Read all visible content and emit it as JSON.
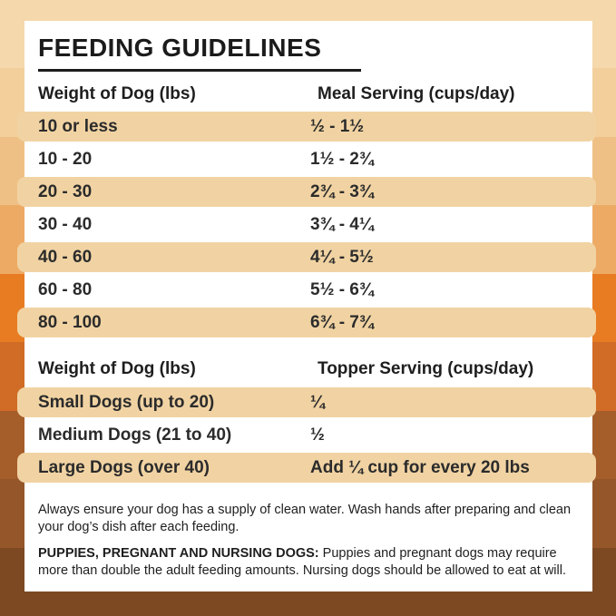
{
  "title": "FEEDING GUIDELINES",
  "meal_table": {
    "col1_header": "Weight of Dog (lbs)",
    "col2_header": "Meal Serving (cups/day)",
    "rows": [
      {
        "weight": "10 or less",
        "serving": "½ - 1½"
      },
      {
        "weight": "10 - 20",
        "serving": "1½ - 2¾"
      },
      {
        "weight": "20 - 30",
        "serving": "2¾ - 3¾"
      },
      {
        "weight": "30 - 40",
        "serving": "3¾ - 4¼"
      },
      {
        "weight": "40 - 60",
        "serving": "4¼ - 5½"
      },
      {
        "weight": "60 - 80",
        "serving": "5½ - 6¾"
      },
      {
        "weight": "80 - 100",
        "serving": "6¾ - 7¾"
      }
    ]
  },
  "topper_table": {
    "col1_header": "Weight of Dog (lbs)",
    "col2_header": "Topper Serving (cups/day)",
    "rows": [
      {
        "weight": "Small Dogs (up to 20)",
        "serving": "¼"
      },
      {
        "weight": "Medium Dogs (21 to 40)",
        "serving": "½"
      },
      {
        "weight": "Large Dogs (over 40)",
        "serving": "Add ¼ cup for every 20 lbs"
      }
    ]
  },
  "notes": {
    "water": "Always ensure your dog has a supply of clean water. Wash hands after preparing and clean your dog’s dish after each feeding.",
    "puppies_label": "PUPPIES, PREGNANT AND NURSING DOGS:",
    "puppies_text": " Puppies and pregnant dogs may require more than double the adult feeding amounts. Nursing dogs should be allowed to eat at will."
  },
  "colors": {
    "card_bg": "#ffffff",
    "row_highlight": "#f1d3a3",
    "text": "#1e1e1e",
    "background_bands": [
      "#f5d8ab",
      "#f2cf9b",
      "#efc085",
      "#edaa65",
      "#e87c22",
      "#d06c26",
      "#a55d2a",
      "#955629",
      "#7c4922"
    ]
  }
}
